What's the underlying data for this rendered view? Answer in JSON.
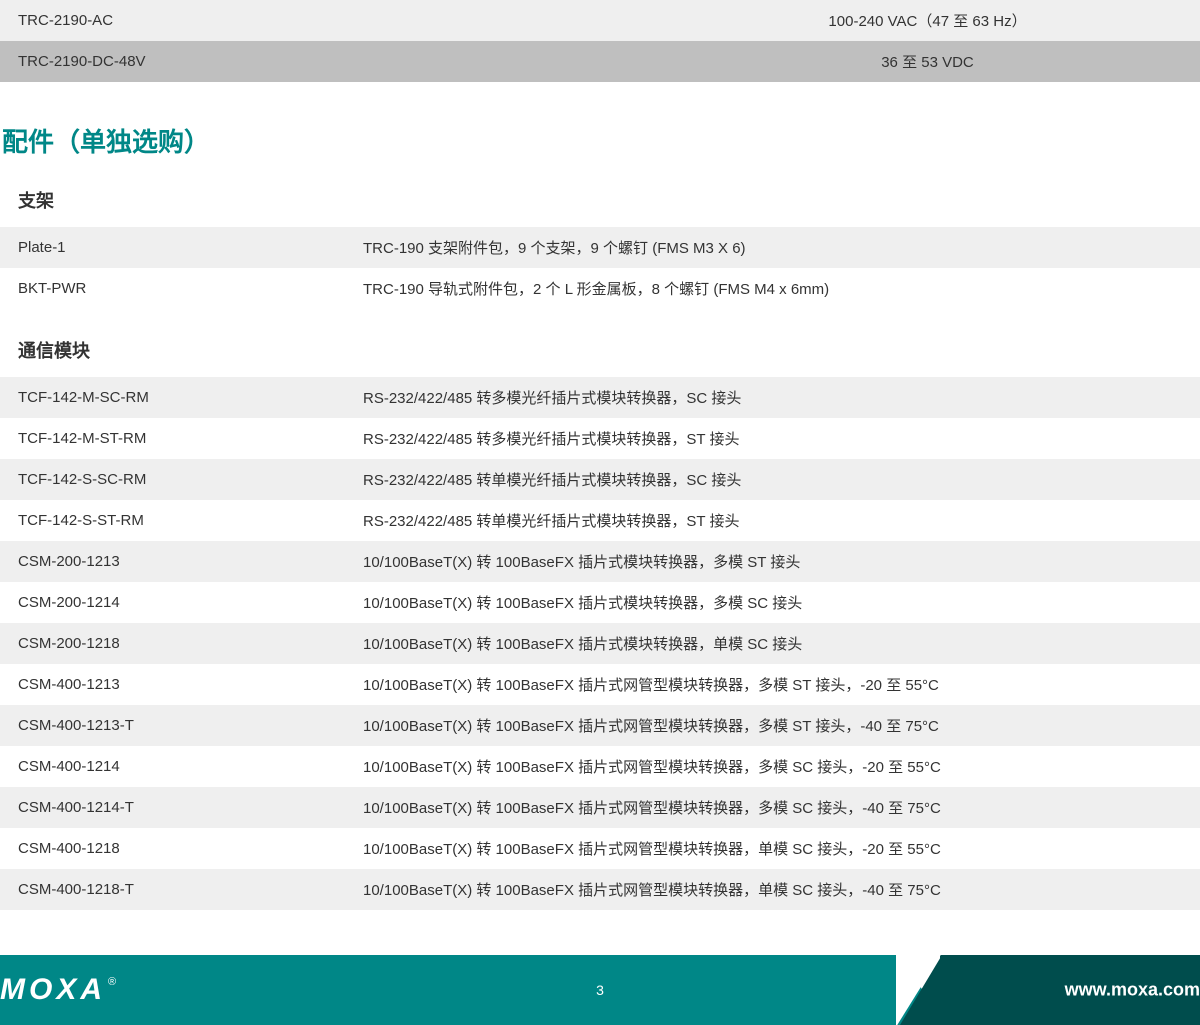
{
  "colors": {
    "teal": "#008787",
    "darkteal": "#004d4d",
    "row_light": "#efefef",
    "row_dark": "#bfbfbf"
  },
  "top_table": {
    "rows": [
      {
        "name": "TRC-2190-AC",
        "value": "100-240 VAC（47 至 63 Hz）",
        "shade": "light"
      },
      {
        "name": "TRC-2190-DC-48V",
        "value": "36 至 53 VDC",
        "shade": "dark"
      }
    ]
  },
  "section_title": "配件（单独选购）",
  "sections": [
    {
      "title": "支架",
      "rows": [
        {
          "name": "Plate-1",
          "desc": "TRC-190 支架附件包，9 个支架，9 个螺钉 (FMS M3 X 6)"
        },
        {
          "name": "BKT-PWR",
          "desc": "TRC-190 导轨式附件包，2 个 L 形金属板，8 个螺钉 (FMS M4 x 6mm)"
        }
      ]
    },
    {
      "title": "通信模块",
      "rows": [
        {
          "name": "TCF-142-M-SC-RM",
          "desc": "RS-232/422/485 转多模光纤插片式模块转换器，SC 接头"
        },
        {
          "name": "TCF-142-M-ST-RM",
          "desc": "RS-232/422/485 转多模光纤插片式模块转换器，ST 接头"
        },
        {
          "name": "TCF-142-S-SC-RM",
          "desc": "RS-232/422/485 转单模光纤插片式模块转换器，SC 接头"
        },
        {
          "name": "TCF-142-S-ST-RM",
          "desc": "RS-232/422/485 转单模光纤插片式模块转换器，ST 接头"
        },
        {
          "name": "CSM-200-1213",
          "desc": "10/100BaseT(X) 转 100BaseFX 插片式模块转换器，多模 ST 接头"
        },
        {
          "name": "CSM-200-1214",
          "desc": "10/100BaseT(X) 转 100BaseFX 插片式模块转换器，多模 SC 接头"
        },
        {
          "name": "CSM-200-1218",
          "desc": "10/100BaseT(X) 转 100BaseFX 插片式模块转换器，单模 SC 接头"
        },
        {
          "name": "CSM-400-1213",
          "desc": "10/100BaseT(X) 转 100BaseFX 插片式网管型模块转换器，多模 ST 接头，-20 至 55°C"
        },
        {
          "name": "CSM-400-1213-T",
          "desc": "10/100BaseT(X) 转 100BaseFX 插片式网管型模块转换器，多模 ST 接头，-40 至 75°C"
        },
        {
          "name": "CSM-400-1214",
          "desc": "10/100BaseT(X) 转 100BaseFX 插片式网管型模块转换器，多模 SC 接头，-20 至 55°C"
        },
        {
          "name": "CSM-400-1214-T",
          "desc": "10/100BaseT(X) 转 100BaseFX 插片式网管型模块转换器，多模 SC 接头，-40 至 75°C"
        },
        {
          "name": "CSM-400-1218",
          "desc": "10/100BaseT(X) 转 100BaseFX 插片式网管型模块转换器，单模 SC 接头，-20 至 55°C"
        },
        {
          "name": "CSM-400-1218-T",
          "desc": "10/100BaseT(X) 转 100BaseFX 插片式网管型模块转换器，单模 SC 接头，-40 至 75°C"
        }
      ]
    }
  ],
  "footer": {
    "logo": "MOXA",
    "page": "3",
    "url": "www.moxa.com"
  }
}
